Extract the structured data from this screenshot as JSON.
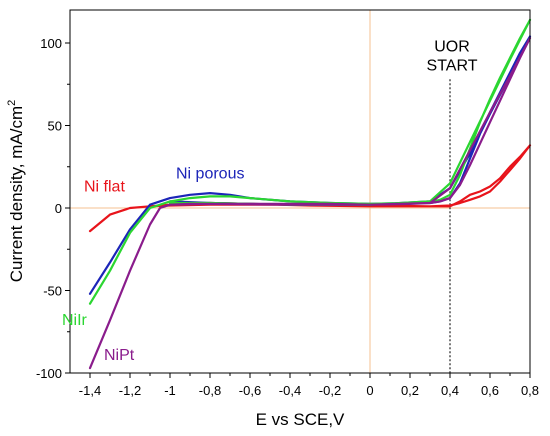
{
  "chart_data": {
    "type": "line",
    "title": "",
    "xlabel": "E vs SCE,V",
    "ylabel": "Current density, mA/cm",
    "ylabel_superscript": "2",
    "xlim": [
      -1.5,
      0.8
    ],
    "ylim": [
      -100,
      120
    ],
    "grid": false,
    "x_ticks": [
      -1.4,
      -1.2,
      -1.0,
      -0.8,
      -0.6,
      -0.4,
      -0.2,
      0.0,
      0.2,
      0.4,
      0.6,
      0.8
    ],
    "x_tick_labels": [
      "-1,4",
      "-1,2",
      "-1",
      "-0,8",
      "-0,6",
      "-0,4",
      "-0,2",
      "0",
      "0,2",
      "0,4",
      "0,6",
      "0,8"
    ],
    "y_ticks": [
      -100,
      -50,
      0,
      50,
      100
    ],
    "y_tick_labels": [
      "-100",
      "-50",
      "0",
      "50",
      "100"
    ],
    "reference_lines": [
      {
        "axis": "x",
        "value": 0.0,
        "color": "#f5c090",
        "style": "solid"
      },
      {
        "axis": "y",
        "value": 0.0,
        "color": "#f5c090",
        "style": "solid"
      },
      {
        "axis": "x",
        "value": 0.4,
        "color": "#333333",
        "style": "dotted"
      }
    ],
    "annotations": [
      {
        "lines": [
          "UOR",
          "START"
        ],
        "x": 0.4,
        "y": 95
      }
    ],
    "series": [
      {
        "name": "Ni flat",
        "color": "#e8141b",
        "label_color": "#e8141b",
        "label_at": [
          -1.43,
          10
        ],
        "x": [
          -1.4,
          -1.3,
          -1.2,
          -1.1,
          -1.0,
          -0.8,
          -0.6,
          -0.3,
          0.0,
          0.3,
          0.4,
          0.45,
          0.5,
          0.55,
          0.6,
          0.65,
          0.7,
          0.75,
          0.8,
          0.75,
          0.7,
          0.65,
          0.6,
          0.55,
          0.5,
          0.45,
          0.4,
          0.3,
          0.0,
          -0.3,
          -0.6,
          -0.8,
          -1.0,
          -1.1,
          -1.2
        ],
        "y": [
          -14,
          -4,
          0,
          1,
          1.5,
          2,
          2,
          2,
          1.5,
          1,
          1,
          4,
          8,
          10,
          13,
          18,
          25,
          31,
          38,
          30,
          23,
          16,
          10,
          7,
          5,
          3,
          1.5,
          1,
          1,
          1.5,
          2.5,
          3,
          2,
          1,
          0
        ]
      },
      {
        "name": "Ni porous",
        "color": "#1c25b8",
        "label_color": "#1c25b8",
        "label_at": [
          -0.97,
          18
        ],
        "x": [
          -1.4,
          -1.3,
          -1.2,
          -1.1,
          -1.0,
          -0.9,
          -0.8,
          -0.7,
          -0.6,
          -0.4,
          -0.2,
          0.0,
          0.2,
          0.3,
          0.35,
          0.4,
          0.45,
          0.5,
          0.55,
          0.6,
          0.65,
          0.7,
          0.75,
          0.8,
          0.7,
          0.6,
          0.5,
          0.4,
          0.3,
          0.0,
          -0.4,
          -0.8,
          -1.0
        ],
        "y": [
          -52,
          -33,
          -13,
          2,
          6,
          8,
          9,
          8,
          6,
          4,
          3,
          2.5,
          3,
          3,
          4,
          6,
          15,
          30,
          45,
          58,
          70,
          82,
          94,
          104,
          80,
          57,
          33,
          12,
          4,
          2,
          2,
          3,
          4
        ]
      },
      {
        "name": "NiIr",
        "color": "#2bd631",
        "label_color": "#2bd631",
        "label_at": [
          -1.54,
          -71
        ],
        "x": [
          -1.4,
          -1.3,
          -1.2,
          -1.1,
          -1.0,
          -0.9,
          -0.8,
          -0.7,
          -0.6,
          -0.4,
          -0.2,
          0.0,
          0.2,
          0.3,
          0.35,
          0.4,
          0.45,
          0.5,
          0.55,
          0.6,
          0.65,
          0.7,
          0.75,
          0.8,
          0.7,
          0.6,
          0.5,
          0.4,
          0.3,
          0.0,
          -0.4,
          -0.8,
          -1.0
        ],
        "y": [
          -58,
          -38,
          -15,
          0,
          4,
          6,
          7,
          7,
          6,
          4,
          3,
          2.5,
          3,
          3.5,
          5,
          8,
          20,
          36,
          52,
          66,
          79,
          91,
          103,
          114,
          90,
          65,
          40,
          15,
          4,
          2,
          2,
          3,
          3
        ]
      },
      {
        "name": "NiPt",
        "color": "#8a1c8c",
        "label_color": "#8a1c8c",
        "label_at": [
          -1.33,
          -92
        ],
        "x": [
          -1.4,
          -1.3,
          -1.2,
          -1.1,
          -1.05,
          -1.0,
          -0.9,
          -0.8,
          -0.6,
          -0.4,
          -0.2,
          0.0,
          0.2,
          0.3,
          0.35,
          0.4,
          0.45,
          0.5,
          0.55,
          0.6,
          0.65,
          0.7,
          0.75,
          0.8,
          0.7,
          0.6,
          0.5,
          0.4,
          0.3,
          0.0,
          -0.4,
          -0.8,
          -1.0
        ],
        "y": [
          -97,
          -68,
          -38,
          -10,
          0,
          2,
          2.5,
          2.5,
          2.5,
          2.5,
          2.5,
          2,
          2.5,
          3,
          4,
          6,
          14,
          26,
          39,
          52,
          65,
          78,
          91,
          103,
          80,
          58,
          35,
          12,
          3,
          2,
          2,
          2.5,
          2
        ]
      }
    ]
  }
}
